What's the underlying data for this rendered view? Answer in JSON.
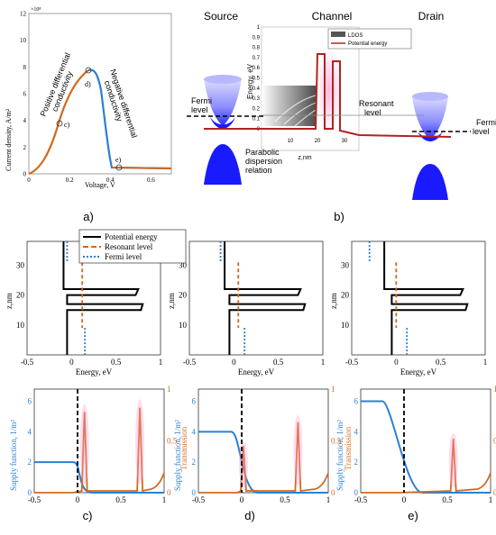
{
  "panel_labels": {
    "a": "a)",
    "b": "b)",
    "c": "c)",
    "d": "d)",
    "e": "e)"
  },
  "iv_curve": {
    "y_label": "Current density, A/m²",
    "x_label": "Voltage, V",
    "y_exponent": "×10⁸",
    "x_ticks": [
      "0",
      "0.2",
      "0.4",
      "0.6"
    ],
    "y_ticks": [
      "0",
      "2",
      "4",
      "6",
      "8",
      "10",
      "12"
    ],
    "annotation_positive": [
      "Positive differential",
      "conductivity"
    ],
    "annotation_negative": [
      "Negative differential",
      "conductivity"
    ],
    "point_labels": [
      "c)",
      "d)",
      "e)"
    ],
    "colors": {
      "orange": "#d2691e",
      "blue": "#2a7fd4"
    }
  },
  "device": {
    "source_label": "Source",
    "channel_label": "Channel",
    "drain_label": "Drain",
    "fermi_level_left": [
      "Fermi",
      "level"
    ],
    "fermi_level_right": [
      "Fermi",
      "level"
    ],
    "resonant_level": [
      "Resonant",
      "level"
    ],
    "parabolic": [
      "Parabolic",
      "dispersion",
      "relation"
    ],
    "legend_ldos": "LDOS",
    "legend_potential": "Potential energy",
    "energy_label": "Energy, eV",
    "z_label": "z,nm",
    "energy_ticks": [
      "0",
      "0.1",
      "0.2",
      "0.3",
      "0.4",
      "0.5",
      "0.6",
      "0.7",
      "0.8",
      "0.9",
      "1"
    ],
    "z_ticks": [
      "10",
      "20",
      "30"
    ],
    "colors": {
      "potential": "#b22222",
      "cone": "#1a1aff"
    }
  },
  "profiles": {
    "legend": [
      "Potential energy",
      "Resonant level",
      "Fermi level"
    ],
    "y_label": "z,nm",
    "x_label": "Energy, eV",
    "x_ticks": [
      "-0.5",
      "0",
      "0.5",
      "1"
    ],
    "y_ticks": [
      "10",
      "20",
      "30"
    ]
  },
  "transmission": {
    "left_label": "Supply function, 1/m²",
    "right_label": "Transmission",
    "x_ticks": [
      "-0.5",
      "0",
      "0.5",
      "1"
    ],
    "left_ticks": [
      "0",
      "2",
      "4",
      "6"
    ],
    "right_ticks": [
      "0",
      "0.5",
      "1"
    ],
    "colors": {
      "supply": "#2a7fd4",
      "transmission": "#d2691e"
    }
  }
}
